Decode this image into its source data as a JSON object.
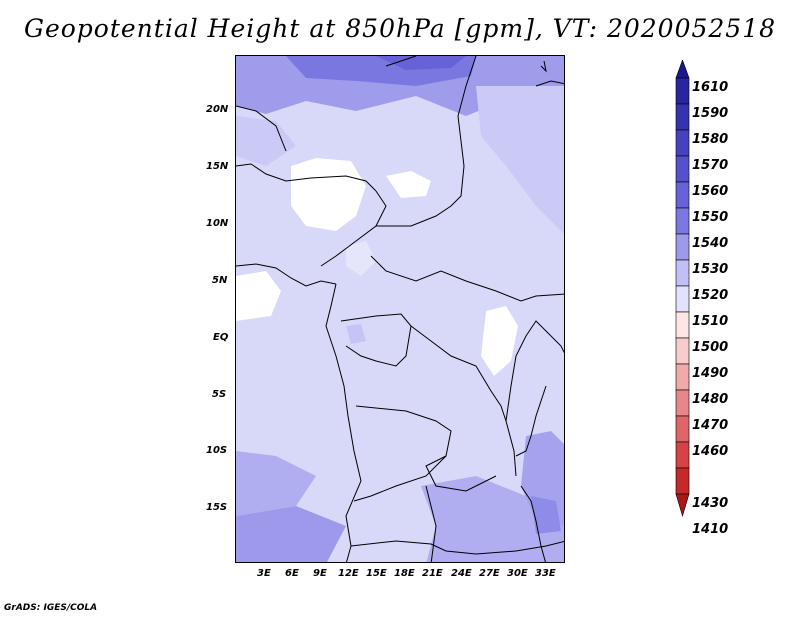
{
  "title": "Geopotential Height at 850hPa [gpm], VT: 2020052518",
  "credit": "GrADS: IGES/COLA",
  "lat_labels": [
    "20N",
    "15N",
    "10N",
    "5N",
    "EQ",
    "5S",
    "10S",
    "15S"
  ],
  "lon_labels": [
    "3E",
    "6E",
    "9E",
    "12E",
    "15E",
    "18E",
    "21E",
    "24E",
    "27E",
    "30E",
    "33E"
  ],
  "colorbar": {
    "labels": [
      "1610",
      "1590",
      "1580",
      "1570",
      "1560",
      "1550",
      "1540",
      "1530",
      "1520",
      "1510",
      "1500",
      "1490",
      "1480",
      "1470",
      "1460",
      "1430",
      "1410"
    ],
    "colors": [
      "#1a1890",
      "#28269e",
      "#3633ae",
      "#4542be",
      "#5551cc",
      "#6762d8",
      "#7c78e2",
      "#9d9aec",
      "#c1bff6",
      "#e3e2fb",
      "#fde6e6",
      "#f8cccc",
      "#efaaaa",
      "#e68888",
      "#de6666",
      "#d44444",
      "#c42a2a",
      "#a81818"
    ]
  }
}
